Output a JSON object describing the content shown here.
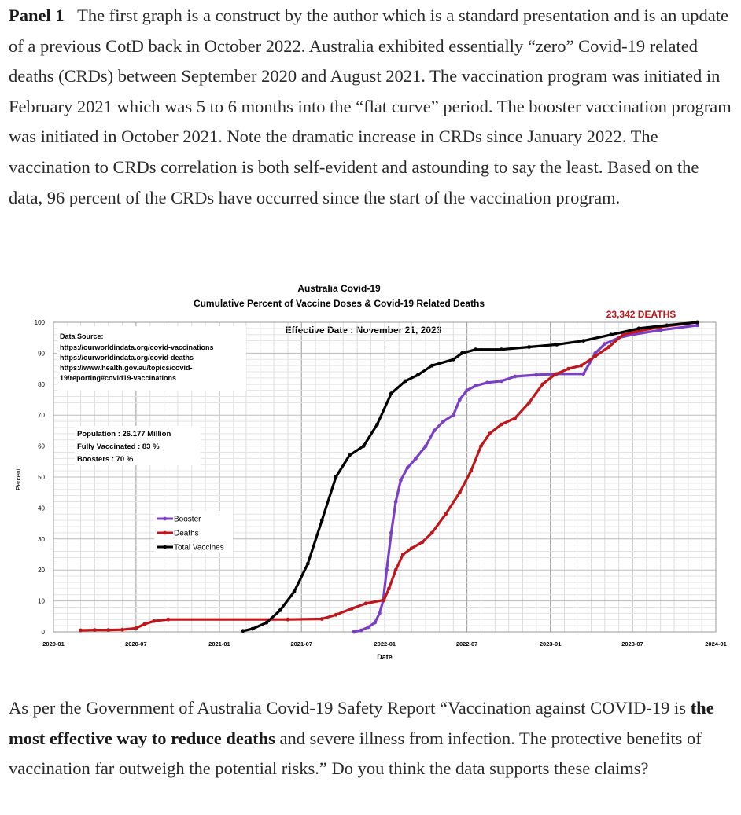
{
  "article": {
    "intro_label": "Panel 1",
    "intro_text": "The first graph is a construct by the author which is a standard presentation and is an update of a previous CotD back in October 2022.   Australia exhibited essentially “zero” Covid-19 related deaths (CRDs) between September 2020 and August 2021. The vaccination program was initiated in February 2021 which was 5 to 6 months into the “flat curve” period.  The booster vaccination program was initiated in October 2021.  Note the dramatic increase in CRDs since January 2022. The vaccination to CRDs correlation is both self-evident and astounding to say the least.  Based on the data, 96 percent of the CRDs have occurred since the start of the vaccination program.",
    "outro_before": "As per the Government of Australia Covid-19 Safety Report “Vaccination against COVID-19 is ",
    "outro_bold": "the most effective way to reduce deaths",
    "outro_after": " and severe illness from infection. The protective benefits of vaccination far outweigh the potential risks.”  Do you think the data supports these claims?"
  },
  "chart_data": {
    "type": "line",
    "title": "Australia Covid-19",
    "subtitle": "Cumulative Percent of Vaccine Doses & Covid-19 Related Deaths",
    "effective_date": "Effective Date : November 21, 2023",
    "deaths_callout": "23,342 DEATHS",
    "xlabel": "Date",
    "ylabel": "Percent",
    "ylim": [
      0,
      100
    ],
    "xlim": [
      "2020-01-01",
      "2024-01-01"
    ],
    "y_ticks": [
      0,
      10,
      20,
      30,
      40,
      50,
      60,
      70,
      80,
      90,
      100
    ],
    "x_ticks": [
      "2020-01",
      "2020-07",
      "2021-01",
      "2021-07",
      "2022-01",
      "2022-07",
      "2023-01",
      "2023-07",
      "2024-01"
    ],
    "grid": true,
    "legend_position": "center-left",
    "source_title": "Data Source:",
    "source_lines": [
      "https://ourworldindata.org/covid-vaccinations",
      "https://ourworldindata.org/covid-deaths",
      "https://www.health.gov.au/topics/covid-",
      "19/reporting#covid19-vaccinations"
    ],
    "stats": [
      "Population : 26.177 Million",
      "Fully Vaccinated : 83 %",
      "Boosters : 70 %"
    ],
    "series": [
      {
        "name": "Booster",
        "color": "#7b3fc4",
        "points": [
          [
            "2021-10-25",
            0
          ],
          [
            "2021-11-10",
            0.5
          ],
          [
            "2021-11-25",
            1.5
          ],
          [
            "2021-12-10",
            3
          ],
          [
            "2021-12-20",
            6
          ],
          [
            "2021-12-28",
            10
          ],
          [
            "2022-01-05",
            20
          ],
          [
            "2022-01-15",
            32
          ],
          [
            "2022-01-25",
            42
          ],
          [
            "2022-02-05",
            49
          ],
          [
            "2022-02-20",
            53
          ],
          [
            "2022-03-10",
            56
          ],
          [
            "2022-04-01",
            60
          ],
          [
            "2022-04-20",
            65
          ],
          [
            "2022-05-10",
            68
          ],
          [
            "2022-06-01",
            70
          ],
          [
            "2022-06-15",
            75
          ],
          [
            "2022-07-01",
            78
          ],
          [
            "2022-07-20",
            79.5
          ],
          [
            "2022-08-15",
            80.5
          ],
          [
            "2022-09-15",
            81
          ],
          [
            "2022-10-15",
            82.5
          ],
          [
            "2022-12-01",
            83
          ],
          [
            "2023-01-15",
            83.3
          ],
          [
            "2023-03-15",
            83.3
          ],
          [
            "2023-04-10",
            90
          ],
          [
            "2023-05-01",
            93
          ],
          [
            "2023-06-01",
            95
          ],
          [
            "2023-07-01",
            96
          ],
          [
            "2023-09-01",
            97.5
          ],
          [
            "2023-11-21",
            99
          ]
        ]
      },
      {
        "name": "Deaths",
        "color": "#c0161a",
        "points": [
          [
            "2020-03-01",
            0.5
          ],
          [
            "2020-04-01",
            0.6
          ],
          [
            "2020-05-01",
            0.6
          ],
          [
            "2020-06-01",
            0.7
          ],
          [
            "2020-07-01",
            1.2
          ],
          [
            "2020-07-20",
            2.5
          ],
          [
            "2020-08-10",
            3.5
          ],
          [
            "2020-09-10",
            4
          ],
          [
            "2021-06-01",
            4
          ],
          [
            "2021-08-15",
            4.2
          ],
          [
            "2021-09-15",
            5.5
          ],
          [
            "2021-10-20",
            7.5
          ],
          [
            "2021-11-20",
            9.2
          ],
          [
            "2021-12-30",
            10.3
          ],
          [
            "2022-01-10",
            14
          ],
          [
            "2022-01-25",
            20
          ],
          [
            "2022-02-10",
            25
          ],
          [
            "2022-03-01",
            27
          ],
          [
            "2022-03-25",
            29
          ],
          [
            "2022-04-15",
            32
          ],
          [
            "2022-05-15",
            38
          ],
          [
            "2022-06-15",
            45
          ],
          [
            "2022-07-10",
            52
          ],
          [
            "2022-08-01",
            60
          ],
          [
            "2022-08-20",
            64
          ],
          [
            "2022-09-15",
            67
          ],
          [
            "2022-10-15",
            69
          ],
          [
            "2022-11-15",
            74
          ],
          [
            "2022-12-15",
            80
          ],
          [
            "2023-01-10",
            83
          ],
          [
            "2023-02-10",
            85
          ],
          [
            "2023-03-10",
            86
          ],
          [
            "2023-04-10",
            89
          ],
          [
            "2023-05-10",
            92
          ],
          [
            "2023-06-10",
            96
          ],
          [
            "2023-07-10",
            97
          ],
          [
            "2023-09-01",
            98.5
          ],
          [
            "2023-11-21",
            100
          ]
        ]
      },
      {
        "name": "Total Vaccines",
        "color": "#000000",
        "points": [
          [
            "2021-02-22",
            0.3
          ],
          [
            "2021-03-15",
            1
          ],
          [
            "2021-04-15",
            3
          ],
          [
            "2021-05-15",
            7
          ],
          [
            "2021-06-15",
            13
          ],
          [
            "2021-07-15",
            22
          ],
          [
            "2021-08-15",
            36
          ],
          [
            "2021-09-15",
            50
          ],
          [
            "2021-10-15",
            57
          ],
          [
            "2021-11-15",
            60
          ],
          [
            "2021-12-15",
            67
          ],
          [
            "2022-01-15",
            77
          ],
          [
            "2022-02-15",
            81
          ],
          [
            "2022-03-15",
            83
          ],
          [
            "2022-04-15",
            86
          ],
          [
            "2022-06-01",
            88
          ],
          [
            "2022-06-20",
            90
          ],
          [
            "2022-07-20",
            91.2
          ],
          [
            "2022-09-15",
            91.2
          ],
          [
            "2022-11-15",
            92
          ],
          [
            "2023-01-15",
            92.8
          ],
          [
            "2023-03-15",
            94
          ],
          [
            "2023-05-15",
            96
          ],
          [
            "2023-07-15",
            98
          ],
          [
            "2023-09-15",
            99
          ],
          [
            "2023-11-21",
            100
          ]
        ]
      }
    ]
  }
}
